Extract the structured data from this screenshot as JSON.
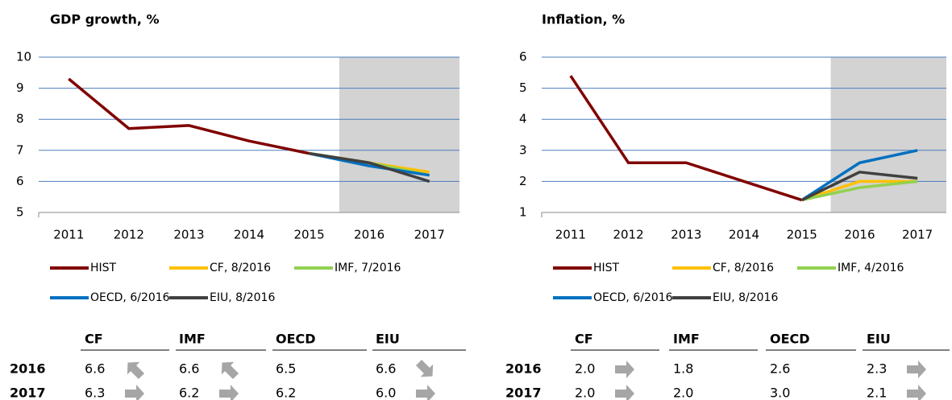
{
  "chart_data": [
    {
      "type": "line",
      "title": "GDP growth, %",
      "x": [
        2011,
        2012,
        2013,
        2014,
        2015,
        2016,
        2017
      ],
      "xlim": [
        2010.5,
        2017.5
      ],
      "xticks": [
        2011,
        2012,
        2013,
        2014,
        2015,
        2016,
        2017
      ],
      "ylim": [
        5,
        10
      ],
      "yticks": [
        5,
        6,
        7,
        8,
        9,
        10
      ],
      "grid": true,
      "shade": [
        2015.5,
        2017.5
      ],
      "shade_color": "#d3d3d3",
      "series": [
        {
          "name": "HIST",
          "color": "#800000",
          "values": [
            9.3,
            7.7,
            7.8,
            7.3,
            6.9,
            null,
            null
          ]
        },
        {
          "name": "CF, 8/2016",
          "color": "#ffc000",
          "values": [
            null,
            null,
            null,
            null,
            6.9,
            6.6,
            6.3
          ]
        },
        {
          "name": "IMF, 7/2016",
          "color": "#92d050",
          "values": [
            null,
            null,
            null,
            null,
            6.9,
            6.6,
            6.2
          ]
        },
        {
          "name": "OECD, 6/2016",
          "color": "#0070c0",
          "values": [
            null,
            null,
            null,
            null,
            6.9,
            6.5,
            6.2
          ]
        },
        {
          "name": "EIU, 8/2016",
          "color": "#404040",
          "values": [
            null,
            null,
            null,
            null,
            6.9,
            6.6,
            6.0
          ]
        }
      ]
    },
    {
      "type": "line",
      "title": "Inflation, %",
      "x": [
        2011,
        2012,
        2013,
        2014,
        2015,
        2016,
        2017
      ],
      "xlim": [
        2010.5,
        2017.5
      ],
      "xticks": [
        2011,
        2012,
        2013,
        2014,
        2015,
        2016,
        2017
      ],
      "ylim": [
        1,
        6
      ],
      "yticks": [
        1,
        2,
        3,
        4,
        5,
        6
      ],
      "grid": true,
      "shade": [
        2015.5,
        2017.5
      ],
      "shade_color": "#d3d3d3",
      "series": [
        {
          "name": "HIST",
          "color": "#800000",
          "values": [
            5.4,
            2.6,
            2.6,
            2.0,
            1.4,
            null,
            null
          ]
        },
        {
          "name": "CF, 8/2016",
          "color": "#ffc000",
          "values": [
            null,
            null,
            null,
            null,
            1.4,
            2.0,
            2.0
          ]
        },
        {
          "name": "IMF, 4/2016",
          "color": "#92d050",
          "values": [
            null,
            null,
            null,
            null,
            1.4,
            1.8,
            2.0
          ]
        },
        {
          "name": "OECD, 6/2016",
          "color": "#0070c0",
          "values": [
            null,
            null,
            null,
            null,
            1.4,
            2.6,
            3.0
          ]
        },
        {
          "name": "EIU, 8/2016",
          "color": "#404040",
          "values": [
            null,
            null,
            null,
            null,
            1.4,
            2.3,
            2.1
          ]
        }
      ]
    }
  ],
  "tables": [
    {
      "columns": [
        "CF",
        "IMF",
        "OECD",
        "EIU"
      ],
      "rows": [
        {
          "label": "2016",
          "cells": [
            {
              "value": "6.6",
              "trend": "up"
            },
            {
              "value": "6.6",
              "trend": "up"
            },
            {
              "value": "6.5"
            },
            {
              "value": "6.6",
              "trend": "down"
            }
          ]
        },
        {
          "label": "2017",
          "cells": [
            {
              "value": "6.3",
              "trend": "right"
            },
            {
              "value": "6.2",
              "trend": "right"
            },
            {
              "value": "6.2"
            },
            {
              "value": "6.0",
              "trend": "right"
            }
          ]
        }
      ]
    },
    {
      "columns": [
        "CF",
        "IMF",
        "OECD",
        "EIU"
      ],
      "rows": [
        {
          "label": "2016",
          "cells": [
            {
              "value": "2.0",
              "trend": "right"
            },
            {
              "value": "1.8"
            },
            {
              "value": "2.6"
            },
            {
              "value": "2.3",
              "trend": "right"
            }
          ]
        },
        {
          "label": "2017",
          "cells": [
            {
              "value": "2.0",
              "trend": "right"
            },
            {
              "value": "2.0"
            },
            {
              "value": "3.0"
            },
            {
              "value": "2.1",
              "trend": "right"
            }
          ]
        }
      ]
    }
  ]
}
